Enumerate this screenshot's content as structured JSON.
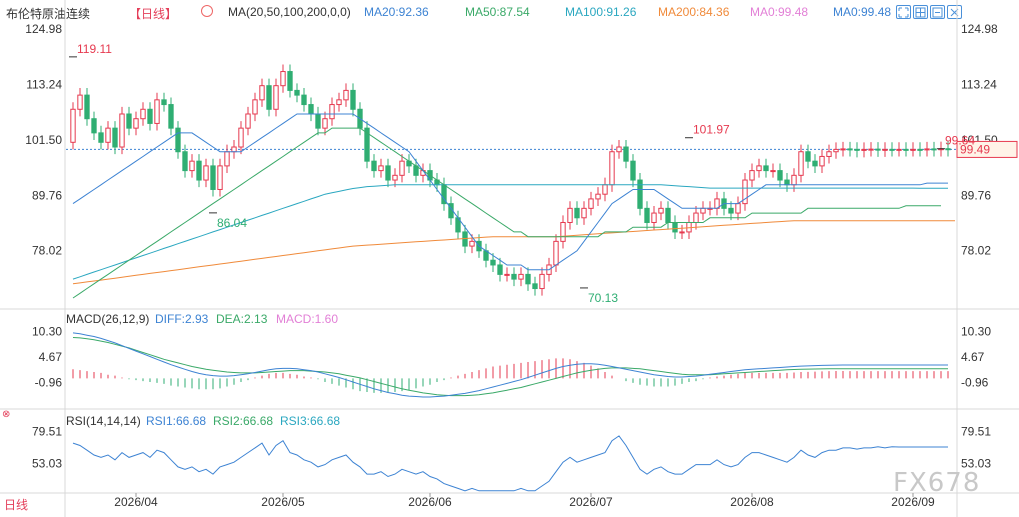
{
  "header": {
    "title": "布伦特原油连续",
    "period_tag": "【日线】",
    "ma_label": "MA(20,50,100,200,0,0)",
    "ma_values": [
      {
        "text": "MA20:92.36",
        "color": "#3d83d3"
      },
      {
        "text": "MA50:87.54",
        "color": "#3aa968"
      },
      {
        "text": "MA100:91.26",
        "color": "#2aa7c0"
      },
      {
        "text": "MA200:84.36",
        "color": "#f08a3a"
      },
      {
        "text": "MA0:99.48",
        "color": "#e27fd6"
      },
      {
        "text": "MA0:99.48",
        "color": "#3d83d3"
      }
    ]
  },
  "macd_header": {
    "label": "MACD(26,12,9)",
    "diff": "DIFF:2.93",
    "dea": "DEA:2.13",
    "macd": "MACD:1.60"
  },
  "rsi_header": {
    "label": "RSI(14,14,14)",
    "rsi1": "RSI1:66.68",
    "rsi2": "RSI2:66.68",
    "rsi3": "RSI3:66.68"
  },
  "period_button": "日线",
  "watermark": "FX678",
  "colors": {
    "up": "#e6394f",
    "down": "#2fae73",
    "ma20": "#3d83d3",
    "ma50": "#3aa968",
    "ma100": "#2aa7c0",
    "ma200": "#f08a3a",
    "diff": "#3d83d3",
    "dea": "#3aa968",
    "rsi": "#3d83d3",
    "axis_text": "#333333",
    "current_price_bg": "#fff3e8",
    "current_price_border": "#e6394f"
  },
  "toolbar_icons": [
    "expand-icon",
    "grid-icon",
    "collapse-icon",
    "close-icon"
  ],
  "chart_data": {
    "type": "candlestick",
    "price_axis": {
      "ticks": [
        "124.98",
        "113.24",
        "101.50",
        "89.76",
        "78.02"
      ],
      "ylim": [
        66.3,
        126.5
      ]
    },
    "macd_axis": {
      "ticks": [
        "10.30",
        "4.67",
        "-0.96"
      ],
      "ylim": [
        -5.2,
        12.4
      ]
    },
    "rsi_axis": {
      "ticks": [
        "79.51",
        "53.03"
      ],
      "ylim": [
        29,
        86
      ]
    },
    "x_labels": [
      "2026/04",
      "2026/05",
      "2026/06",
      "2026/07",
      "2026/08",
      "2026/09"
    ],
    "x_label_index": [
      9,
      30,
      51,
      74,
      97,
      120
    ],
    "current_price": "99.49",
    "annotations": [
      {
        "text": "119.11",
        "index": 0,
        "value": 119.11,
        "color": "#e6394f"
      },
      {
        "text": "86.04",
        "index": 20,
        "value": 86.04,
        "color": "#2fae73"
      },
      {
        "text": "70.13",
        "index": 73,
        "value": 70.13,
        "color": "#2fae73"
      },
      {
        "text": "101.97",
        "index": 88,
        "value": 101.97,
        "color": "#e6394f"
      },
      {
        "text": "99.64",
        "index": 124,
        "value": 99.64,
        "color": "#e6394f"
      }
    ],
    "closes": [
      108,
      111,
      106,
      103,
      101,
      104,
      100,
      107,
      104,
      106,
      108,
      105,
      110,
      109,
      104,
      99,
      95,
      97,
      93,
      96,
      91,
      96,
      99,
      100,
      104,
      107,
      110,
      113,
      108,
      113,
      116,
      112,
      111,
      109,
      107,
      104,
      106,
      109,
      110,
      112,
      108,
      104,
      97,
      95,
      96,
      93,
      94,
      97,
      96,
      94,
      95,
      93,
      92,
      88,
      85,
      82,
      79,
      80,
      78,
      76,
      75,
      73,
      73,
      72,
      73,
      71,
      70,
      73,
      75,
      80,
      84,
      87,
      85,
      87,
      89,
      90,
      92,
      99,
      100,
      97,
      93,
      87,
      84,
      86,
      87,
      84,
      82,
      82,
      84,
      86,
      87,
      87,
      89,
      87,
      86,
      88,
      93,
      95,
      96,
      95,
      95,
      93,
      92,
      94,
      99,
      97,
      96,
      98,
      99,
      99.49,
      99.6,
      99.5,
      99.3,
      99.49,
      99.55,
      99.4,
      99.5,
      99.48,
      99.5,
      99.49,
      99.5,
      99.49,
      99.6,
      99.49,
      99.64,
      99.49
    ],
    "opens": [
      101,
      108,
      111,
      106,
      103,
      101,
      104,
      100,
      107,
      104,
      106,
      108,
      105,
      110,
      109,
      104,
      99,
      95,
      97,
      93,
      96,
      91,
      96,
      99,
      100,
      104,
      107,
      110,
      113,
      108,
      113,
      116,
      112,
      111,
      109,
      107,
      104,
      106,
      109,
      110,
      112,
      108,
      104,
      97,
      95,
      96,
      93,
      94,
      97,
      96,
      94,
      95,
      93,
      92,
      88,
      85,
      82,
      79,
      80,
      78,
      76,
      75,
      73,
      73,
      72,
      73,
      71,
      70,
      73,
      75,
      80,
      84,
      87,
      85,
      87,
      89,
      90,
      92,
      99,
      100,
      97,
      93,
      87,
      84,
      86,
      87,
      84,
      82,
      82,
      84,
      86,
      87,
      87,
      89,
      87,
      86,
      88,
      93,
      95,
      96,
      95,
      95,
      93,
      92,
      94,
      99,
      97,
      96,
      98,
      99,
      99.49,
      99.6,
      99.5,
      99.3,
      99.49,
      99.55,
      99.4,
      99.5,
      99.48,
      99.5,
      99.49,
      99.5,
      99.49,
      99.6,
      99.49,
      99.64
    ],
    "ma20": [
      88,
      89,
      90,
      91,
      92,
      93,
      94,
      95,
      96,
      97,
      98,
      99,
      100,
      101,
      102,
      103,
      103,
      103,
      102,
      101,
      100,
      99,
      99,
      99,
      99,
      100,
      101,
      102,
      103,
      104,
      105,
      106,
      107,
      107,
      107,
      107,
      107,
      107,
      107,
      107,
      107,
      106,
      105,
      104,
      103,
      102,
      101,
      100,
      99,
      97,
      95,
      93,
      91,
      89,
      87,
      85,
      83,
      81,
      79,
      78,
      77,
      76,
      75,
      75,
      75,
      74,
      74,
      74,
      74,
      75,
      76,
      77,
      78,
      80,
      82,
      84,
      86,
      88,
      89,
      90,
      91,
      91,
      91,
      91,
      90,
      89,
      88,
      87,
      87,
      87,
      87,
      87,
      87,
      88,
      88,
      88,
      89,
      90,
      91,
      92,
      92,
      92,
      92,
      92,
      92,
      92,
      92,
      92,
      92,
      92,
      92,
      92,
      92,
      92,
      92,
      92,
      92,
      92,
      92,
      92,
      92,
      92,
      92.36,
      92.36,
      92.36,
      92.36
    ],
    "ma50": [
      68,
      69,
      70,
      71,
      72,
      73,
      74,
      75,
      76,
      77,
      78,
      79,
      80,
      81,
      82,
      83,
      84,
      85,
      86,
      87,
      88,
      89,
      90,
      91,
      92,
      93,
      94,
      95,
      96,
      97,
      98,
      99,
      100,
      101,
      102,
      103,
      103,
      104,
      104,
      104,
      104,
      104,
      103,
      102,
      101,
      100,
      99,
      98,
      97,
      96,
      95,
      94,
      93,
      92,
      91,
      90,
      89,
      88,
      87,
      86,
      85,
      84,
      83,
      82,
      82,
      81,
      81,
      81,
      81,
      81,
      81,
      81,
      81,
      81,
      81,
      81,
      82,
      82,
      82,
      82,
      83,
      83,
      83,
      83,
      83,
      84,
      84,
      84,
      84,
      84,
      84,
      85,
      85,
      85,
      85,
      85,
      85,
      86,
      86,
      86,
      86,
      86,
      86,
      86,
      86,
      87,
      87,
      87,
      87,
      87,
      87,
      87,
      87,
      87,
      87,
      87,
      87,
      87,
      87,
      87.54,
      87.54,
      87.54,
      87.54,
      87.54,
      87.54
    ],
    "ma100": [
      72,
      72.5,
      73,
      73.5,
      74,
      74.5,
      75,
      75.5,
      76,
      76.5,
      77,
      77.5,
      78,
      78.5,
      79,
      79.5,
      80,
      80.5,
      81,
      81.5,
      82,
      82.5,
      83,
      83.5,
      84,
      84.5,
      85,
      85.5,
      86,
      86.5,
      87,
      87.5,
      88,
      88.5,
      89,
      89.5,
      90,
      90.3,
      90.6,
      90.9,
      91.2,
      91.4,
      91.6,
      91.7,
      91.8,
      91.9,
      92,
      92,
      92,
      92,
      92,
      92,
      92,
      92,
      92,
      92,
      92,
      92,
      92,
      92,
      92,
      92,
      92,
      92,
      92,
      92,
      92,
      92,
      92,
      92,
      92,
      92,
      92,
      92,
      92,
      92,
      92,
      92,
      92,
      92,
      92,
      92,
      92,
      92,
      92,
      91.9,
      91.8,
      91.7,
      91.6,
      91.5,
      91.4,
      91.3,
      91.3,
      91.3,
      91.3,
      91.3,
      91.3,
      91.3,
      91.3,
      91.3,
      91.3,
      91.3,
      91.3,
      91.3,
      91.3,
      91.3,
      91.3,
      91.3,
      91.3,
      91.3,
      91.3,
      91.3,
      91.3,
      91.3,
      91.3,
      91.3,
      91.3,
      91.3,
      91.3,
      91.3,
      91.3,
      91.26,
      91.26,
      91.26,
      91.26,
      91.26
    ],
    "ma200": [
      71,
      71.2,
      71.4,
      71.6,
      71.8,
      72,
      72.2,
      72.4,
      72.6,
      72.8,
      73,
      73.2,
      73.4,
      73.6,
      73.8,
      74,
      74.2,
      74.4,
      74.6,
      74.8,
      75,
      75.2,
      75.4,
      75.6,
      75.8,
      76,
      76.2,
      76.4,
      76.6,
      76.8,
      77,
      77.2,
      77.4,
      77.6,
      77.8,
      78,
      78.2,
      78.4,
      78.6,
      78.8,
      79,
      79.1,
      79.2,
      79.3,
      79.4,
      79.5,
      79.6,
      79.7,
      79.8,
      79.9,
      80,
      80.1,
      80.2,
      80.3,
      80.4,
      80.5,
      80.6,
      80.7,
      80.8,
      80.9,
      81,
      81,
      81,
      81,
      81,
      81,
      81,
      81,
      81,
      81,
      81.1,
      81.2,
      81.3,
      81.4,
      81.5,
      81.6,
      81.7,
      81.8,
      81.9,
      82,
      82.1,
      82.2,
      82.3,
      82.4,
      82.5,
      82.6,
      82.7,
      82.8,
      82.9,
      83,
      83.1,
      83.2,
      83.3,
      83.4,
      83.5,
      83.6,
      83.7,
      83.8,
      83.9,
      84,
      84.1,
      84.2,
      84.3,
      84.36,
      84.36,
      84.36,
      84.36,
      84.36,
      84.36,
      84.36,
      84.36,
      84.36,
      84.36,
      84.36,
      84.36,
      84.36,
      84.36,
      84.36,
      84.36,
      84.36,
      84.36,
      84.36,
      84.36,
      84.36,
      84.36,
      84.36,
      84.36
    ],
    "diff": [
      10,
      9.8,
      9.5,
      9.2,
      8.8,
      8.3,
      7.8,
      7.2,
      6.6,
      6,
      5.4,
      4.8,
      4.2,
      3.6,
      3,
      2.5,
      2,
      1.5,
      1.1,
      0.8,
      0.6,
      0.5,
      0.5,
      0.6,
      0.8,
      1,
      1.3,
      1.6,
      1.9,
      2.1,
      2.2,
      2.2,
      2.1,
      1.9,
      1.7,
      1.4,
      1,
      0.6,
      0.2,
      -0.3,
      -0.8,
      -1.3,
      -1.8,
      -2.3,
      -2.7,
      -3.1,
      -3.4,
      -3.7,
      -3.9,
      -4,
      -4.1,
      -4.1,
      -4,
      -3.9,
      -3.7,
      -3.5,
      -3.3,
      -3,
      -2.7,
      -2.3,
      -1.9,
      -1.5,
      -1.1,
      -0.7,
      -0.3,
      0.2,
      0.7,
      1.2,
      1.7,
      2.2,
      2.6,
      2.9,
      3.1,
      3.2,
      3.2,
      3.1,
      2.9,
      2.6,
      2.3,
      2,
      1.7,
      1.4,
      1.1,
      0.8,
      0.6,
      0.4,
      0.3,
      0.3,
      0.4,
      0.5,
      0.7,
      0.9,
      1.1,
      1.3,
      1.5,
      1.7,
      1.9,
      2,
      2.1,
      2.2,
      2.3,
      2.4,
      2.5,
      2.6,
      2.7,
      2.75,
      2.8,
      2.85,
      2.9,
      2.92,
      2.93,
      2.93,
      2.93,
      2.93,
      2.93,
      2.93,
      2.93,
      2.93,
      2.93,
      2.93,
      2.93,
      2.93,
      2.93,
      2.93,
      2.93,
      2.93
    ],
    "dea": [
      9,
      8.9,
      8.7,
      8.5,
      8.2,
      7.9,
      7.5,
      7.1,
      6.7,
      6.2,
      5.7,
      5.2,
      4.7,
      4.2,
      3.8,
      3.4,
      3,
      2.6,
      2.3,
      2,
      1.8,
      1.6,
      1.4,
      1.3,
      1.2,
      1.2,
      1.2,
      1.3,
      1.4,
      1.5,
      1.6,
      1.7,
      1.7,
      1.7,
      1.6,
      1.5,
      1.4,
      1.2,
      1,
      0.7,
      0.4,
      0.1,
      -0.3,
      -0.7,
      -1.1,
      -1.5,
      -1.9,
      -2.3,
      -2.6,
      -2.9,
      -3.2,
      -3.4,
      -3.6,
      -3.7,
      -3.8,
      -3.8,
      -3.8,
      -3.7,
      -3.6,
      -3.4,
      -3.2,
      -2.9,
      -2.6,
      -2.3,
      -2,
      -1.6,
      -1.2,
      -0.8,
      -0.4,
      0,
      0.4,
      0.8,
      1.2,
      1.5,
      1.8,
      2,
      2.2,
      2.3,
      2.3,
      2.3,
      2.2,
      2.1,
      1.9,
      1.7,
      1.5,
      1.3,
      1.1,
      0.9,
      0.8,
      0.8,
      0.8,
      0.8,
      0.9,
      1,
      1.1,
      1.2,
      1.3,
      1.4,
      1.5,
      1.6,
      1.7,
      1.8,
      1.9,
      1.95,
      2,
      2.03,
      2.06,
      2.08,
      2.1,
      2.11,
      2.12,
      2.13,
      2.13,
      2.13,
      2.13,
      2.13,
      2.13,
      2.13,
      2.13,
      2.13,
      2.13,
      2.13,
      2.13,
      2.13,
      2.13,
      2.13
    ],
    "rsi": [
      70,
      68,
      64,
      60,
      58,
      60,
      56,
      62,
      58,
      60,
      62,
      58,
      64,
      62,
      56,
      50,
      48,
      50,
      46,
      48,
      44,
      50,
      52,
      54,
      58,
      62,
      66,
      70,
      60,
      68,
      72,
      62,
      60,
      56,
      54,
      50,
      52,
      56,
      58,
      60,
      54,
      50,
      44,
      44,
      46,
      42,
      44,
      48,
      46,
      44,
      46,
      42,
      40,
      36,
      34,
      32,
      30,
      32,
      30,
      30,
      30,
      30,
      30,
      30,
      32,
      30,
      30,
      34,
      38,
      46,
      54,
      58,
      54,
      56,
      58,
      60,
      62,
      72,
      76,
      68,
      58,
      48,
      44,
      48,
      50,
      46,
      44,
      44,
      48,
      52,
      52,
      52,
      56,
      52,
      50,
      52,
      58,
      62,
      62,
      60,
      58,
      56,
      54,
      58,
      64,
      60,
      58,
      62,
      64,
      64,
      66,
      66,
      65,
      66,
      66,
      67,
      66,
      67,
      66.68,
      66.68,
      66.68,
      66.68,
      66.68,
      66.68,
      66.68,
      66.68
    ]
  }
}
